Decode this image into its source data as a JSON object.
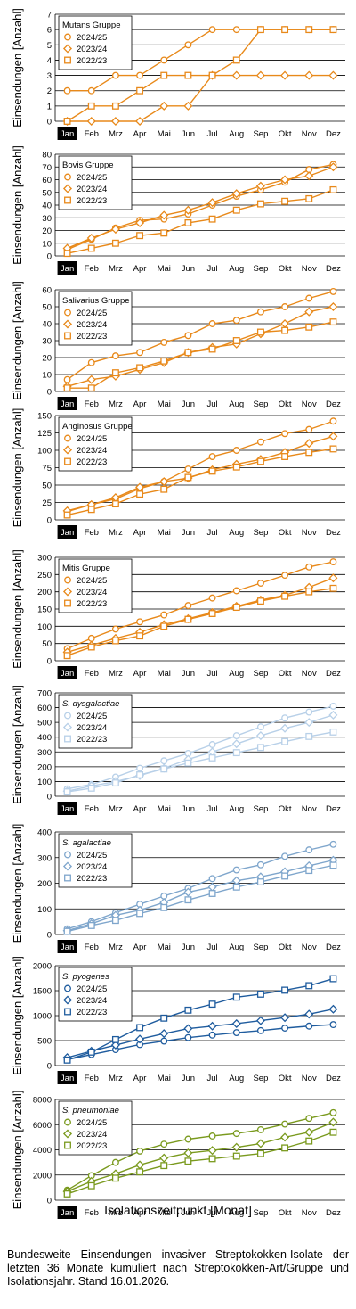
{
  "x_axis_label": "Isolationszeitpunkt [Monat]",
  "caption": "Bundesweite Einsendungen invasiver Streptokokken-Isolate der letzten 36 Monate kumuliert nach Streptokokken-Art/Gruppe und Isolationsjahr. Stand 16.01.2026.",
  "chart_data": [
    {
      "type": "line",
      "title": "Mutans Gruppe",
      "italic": false,
      "color": "#E8891A",
      "ylabel": "Einsendungen [Anzahl]",
      "categories": [
        "Jan",
        "Feb",
        "Mrz",
        "Apr",
        "Mai",
        "Jun",
        "Jul",
        "Aug",
        "Sep",
        "Okt",
        "Nov",
        "Dez"
      ],
      "highlight_category": "Jan",
      "ylim": [
        0,
        7
      ],
      "yticks": [
        0,
        1,
        2,
        3,
        4,
        5,
        6,
        7
      ],
      "grid": true,
      "legend_position": "top-left",
      "series": [
        {
          "name": "2024/25",
          "marker": "circle",
          "values": [
            2,
            2,
            3,
            3,
            4,
            5,
            6,
            6,
            6,
            6,
            6,
            6
          ]
        },
        {
          "name": "2023/24",
          "marker": "diamond",
          "values": [
            0,
            0,
            0,
            0,
            1,
            1,
            3,
            3,
            3,
            3,
            3,
            3
          ]
        },
        {
          "name": "2022/23",
          "marker": "square",
          "values": [
            0,
            1,
            1,
            2,
            3,
            3,
            3,
            4,
            6,
            6,
            6,
            6
          ]
        }
      ]
    },
    {
      "type": "line",
      "title": "Bovis Gruppe",
      "italic": false,
      "color": "#E8891A",
      "ylabel": "Einsendungen [Anzahl]",
      "categories": [
        "Jan",
        "Feb",
        "Mrz",
        "Apr",
        "Mai",
        "Jun",
        "Jul",
        "Aug",
        "Sep",
        "Okt",
        "Nov",
        "Dez"
      ],
      "highlight_category": "Jan",
      "ylim": [
        0,
        80
      ],
      "yticks": [
        0,
        10,
        20,
        30,
        40,
        50,
        60,
        70,
        80
      ],
      "grid": true,
      "legend_position": "top-left",
      "series": [
        {
          "name": "2024/25",
          "marker": "circle",
          "values": [
            5,
            13,
            22,
            28,
            29,
            33,
            40,
            47,
            52,
            58,
            68,
            72
          ]
        },
        {
          "name": "2023/24",
          "marker": "diamond",
          "values": [
            6,
            14,
            21,
            26,
            32,
            36,
            42,
            49,
            55,
            60,
            63,
            70
          ]
        },
        {
          "name": "2022/23",
          "marker": "square",
          "values": [
            2,
            6,
            10,
            16,
            18,
            26,
            29,
            36,
            41,
            43,
            45,
            52
          ]
        }
      ]
    },
    {
      "type": "line",
      "title": "Salivarius Gruppe",
      "italic": false,
      "color": "#E8891A",
      "ylabel": "Einsendungen [Anzahl]",
      "categories": [
        "Jan",
        "Feb",
        "Mrz",
        "Apr",
        "Mai",
        "Jun",
        "Jul",
        "Aug",
        "Sep",
        "Okt",
        "Nov",
        "Dez"
      ],
      "highlight_category": "Jan",
      "ylim": [
        0,
        60
      ],
      "yticks": [
        0,
        10,
        20,
        30,
        40,
        50,
        60
      ],
      "grid": true,
      "legend_position": "top-left",
      "series": [
        {
          "name": "2024/25",
          "marker": "circle",
          "values": [
            7,
            17,
            21,
            23,
            29,
            33,
            40,
            42,
            47,
            50,
            55,
            59
          ]
        },
        {
          "name": "2023/24",
          "marker": "diamond",
          "values": [
            3,
            7,
            9,
            13,
            17,
            23,
            26,
            28,
            34,
            40,
            47,
            50
          ]
        },
        {
          "name": "2022/23",
          "marker": "square",
          "values": [
            2,
            2,
            11,
            14,
            18,
            23,
            25,
            30,
            35,
            36,
            38,
            41
          ]
        }
      ]
    },
    {
      "type": "line",
      "title": "Anginosus Gruppe",
      "italic": false,
      "color": "#E8891A",
      "ylabel": "Einsendungen [Anzahl]",
      "categories": [
        "Jan",
        "Feb",
        "Mrz",
        "Apr",
        "Mai",
        "Jun",
        "Jul",
        "Aug",
        "Sep",
        "Okt",
        "Nov",
        "Dez"
      ],
      "highlight_category": "Jan",
      "ylim": [
        0,
        150
      ],
      "yticks": [
        0,
        25,
        50,
        75,
        100,
        125,
        150
      ],
      "grid": true,
      "legend_position": "top-left",
      "series": [
        {
          "name": "2024/25",
          "marker": "circle",
          "values": [
            12,
            22,
            30,
            45,
            55,
            73,
            91,
            100,
            112,
            124,
            130,
            142
          ]
        },
        {
          "name": "2023/24",
          "marker": "diamond",
          "values": [
            13,
            22,
            32,
            47,
            55,
            60,
            72,
            80,
            87,
            97,
            110,
            120
          ]
        },
        {
          "name": "2022/23",
          "marker": "square",
          "values": [
            7,
            15,
            23,
            37,
            44,
            61,
            70,
            76,
            84,
            91,
            97,
            102
          ]
        }
      ]
    },
    {
      "type": "line",
      "title": "Mitis Gruppe",
      "italic": false,
      "color": "#E8891A",
      "ylabel": "Einsendungen [Anzahl]",
      "categories": [
        "Jan",
        "Feb",
        "Mrz",
        "Apr",
        "Mai",
        "Jun",
        "Jul",
        "Aug",
        "Sep",
        "Okt",
        "Nov",
        "Dez"
      ],
      "highlight_category": "Jan",
      "ylim": [
        0,
        300
      ],
      "yticks": [
        0,
        50,
        100,
        150,
        200,
        250,
        300
      ],
      "grid": true,
      "legend_position": "top-left",
      "series": [
        {
          "name": "2024/25",
          "marker": "circle",
          "values": [
            35,
            65,
            92,
            113,
            133,
            160,
            182,
            203,
            225,
            248,
            272,
            287
          ]
        },
        {
          "name": "2023/24",
          "marker": "diamond",
          "values": [
            25,
            45,
            65,
            83,
            105,
            122,
            140,
            158,
            176,
            190,
            213,
            240
          ]
        },
        {
          "name": "2022/23",
          "marker": "square",
          "values": [
            15,
            40,
            58,
            72,
            100,
            120,
            137,
            155,
            173,
            187,
            200,
            210
          ]
        }
      ]
    },
    {
      "type": "line",
      "title": "S. dysgalactiae",
      "italic": true,
      "color": "#B8D0E8",
      "ylabel": "Einsendungen [Anzahl]",
      "categories": [
        "Jan",
        "Feb",
        "Mrz",
        "Apr",
        "Mai",
        "Jun",
        "Jul",
        "Aug",
        "Sep",
        "Okt",
        "Nov",
        "Dez"
      ],
      "highlight_category": "Jan",
      "ylim": [
        0,
        700
      ],
      "yticks": [
        0,
        100,
        200,
        300,
        400,
        500,
        600,
        700
      ],
      "grid": true,
      "legend_position": "top-left",
      "series": [
        {
          "name": "2024/25",
          "marker": "circle",
          "values": [
            50,
            80,
            130,
            190,
            240,
            290,
            350,
            410,
            470,
            530,
            570,
            610
          ]
        },
        {
          "name": "2023/24",
          "marker": "diamond",
          "values": [
            35,
            70,
            100,
            140,
            190,
            250,
            300,
            355,
            410,
            460,
            500,
            550
          ]
        },
        {
          "name": "2022/23",
          "marker": "square",
          "values": [
            30,
            55,
            90,
            145,
            185,
            225,
            260,
            295,
            330,
            370,
            405,
            435
          ]
        }
      ]
    },
    {
      "type": "line",
      "title": "S. agalactiae",
      "italic": true,
      "color": "#7FA6CC",
      "ylabel": "Einsendungen [Anzahl]",
      "categories": [
        "Jan",
        "Feb",
        "Mrz",
        "Apr",
        "Mai",
        "Jun",
        "Jul",
        "Aug",
        "Sep",
        "Okt",
        "Nov",
        "Dez"
      ],
      "highlight_category": "Jan",
      "ylim": [
        0,
        400
      ],
      "yticks": [
        0,
        100,
        200,
        300,
        400
      ],
      "grid": true,
      "legend_position": "top-left",
      "series": [
        {
          "name": "2024/25",
          "marker": "circle",
          "values": [
            22,
            50,
            85,
            118,
            150,
            180,
            218,
            252,
            272,
            305,
            330,
            352
          ]
        },
        {
          "name": "2023/24",
          "marker": "diamond",
          "values": [
            15,
            42,
            75,
            95,
            125,
            165,
            185,
            210,
            225,
            245,
            268,
            290
          ]
        },
        {
          "name": "2022/23",
          "marker": "square",
          "values": [
            12,
            35,
            55,
            82,
            105,
            135,
            160,
            185,
            205,
            228,
            250,
            270
          ]
        }
      ]
    },
    {
      "type": "line",
      "title": "S. pyogenes",
      "italic": true,
      "color": "#1F5C9E",
      "ylabel": "Einsendungen [Anzahl]",
      "categories": [
        "Jan",
        "Feb",
        "Mrz",
        "Apr",
        "Mai",
        "Jun",
        "Jul",
        "Aug",
        "Sep",
        "Okt",
        "Nov",
        "Dez"
      ],
      "highlight_category": "Jan",
      "ylim": [
        0,
        2000
      ],
      "yticks": [
        0,
        500,
        1000,
        1500,
        2000
      ],
      "grid": true,
      "legend_position": "top-left",
      "series": [
        {
          "name": "2024/25",
          "marker": "circle",
          "values": [
            120,
            220,
            320,
            420,
            490,
            560,
            610,
            660,
            700,
            750,
            790,
            820
          ]
        },
        {
          "name": "2023/24",
          "marker": "diamond",
          "values": [
            160,
            290,
            410,
            530,
            640,
            740,
            790,
            840,
            900,
            960,
            1030,
            1130
          ]
        },
        {
          "name": "2022/23",
          "marker": "square",
          "values": [
            110,
            270,
            520,
            760,
            950,
            1110,
            1230,
            1370,
            1430,
            1510,
            1600,
            1740
          ]
        }
      ]
    },
    {
      "type": "line",
      "title": "S. pneumoniae",
      "italic": true,
      "color": "#7A9A1E",
      "ylabel": "Einsendungen [Anzahl]",
      "categories": [
        "Jan",
        "Feb",
        "Mrz",
        "Apr",
        "Mai",
        "Jun",
        "Jul",
        "Aug",
        "Sep",
        "Okt",
        "Nov",
        "Dez"
      ],
      "highlight_category": "Jan",
      "ylim": [
        0,
        8000
      ],
      "yticks": [
        0,
        2000,
        4000,
        6000,
        8000
      ],
      "grid": true,
      "legend_position": "top-left",
      "series": [
        {
          "name": "2024/25",
          "marker": "circle",
          "values": [
            800,
            1950,
            3000,
            3900,
            4450,
            4850,
            5100,
            5300,
            5600,
            6050,
            6500,
            6950
          ]
        },
        {
          "name": "2023/24",
          "marker": "diamond",
          "values": [
            700,
            1500,
            2100,
            2800,
            3350,
            3750,
            3950,
            4200,
            4500,
            5000,
            5400,
            6200
          ]
        },
        {
          "name": "2022/23",
          "marker": "square",
          "values": [
            500,
            1150,
            1750,
            2250,
            2750,
            3100,
            3300,
            3500,
            3700,
            4150,
            4700,
            5400
          ]
        }
      ]
    }
  ]
}
